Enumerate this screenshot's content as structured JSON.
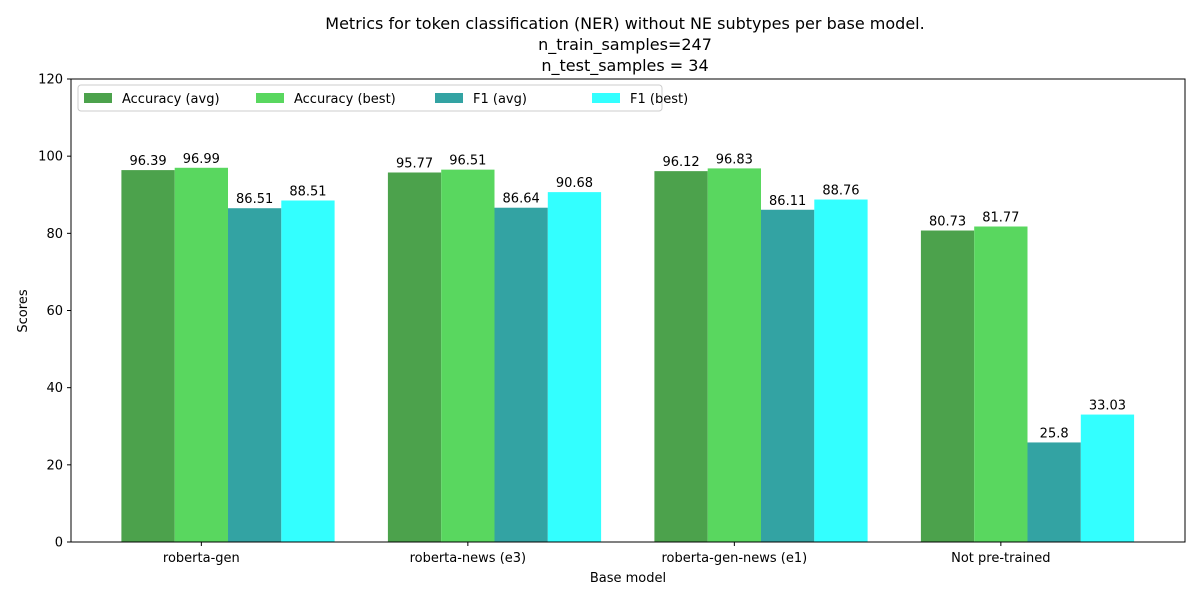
{
  "chart_data": {
    "type": "bar",
    "title_lines": [
      "Metrics for token classification (NER) without NE subtypes per base model.",
      "n_train_samples=247",
      "n_test_samples = 34"
    ],
    "xlabel": "Base model",
    "ylabel": "Scores",
    "ylim": [
      0,
      120
    ],
    "yticks": [
      0,
      20,
      40,
      60,
      80,
      100,
      120
    ],
    "grid": false,
    "legend_position": "top-left",
    "categories": [
      "roberta-gen",
      "roberta-news (e3)",
      "roberta-gen-news (e1)",
      "Not pre-trained"
    ],
    "series": [
      {
        "name": "Accuracy (avg)",
        "color": "#4ca24c",
        "values": [
          96.39,
          95.77,
          96.12,
          80.73
        ]
      },
      {
        "name": "Accuracy (best)",
        "color": "#59d75f",
        "values": [
          96.99,
          96.51,
          96.83,
          81.77
        ]
      },
      {
        "name": "F1 (avg)",
        "color": "#33a3a3",
        "values": [
          86.51,
          86.64,
          86.11,
          25.8
        ]
      },
      {
        "name": "F1 (best)",
        "color": "#33ffff",
        "values": [
          88.51,
          90.68,
          88.76,
          33.03
        ]
      }
    ]
  }
}
